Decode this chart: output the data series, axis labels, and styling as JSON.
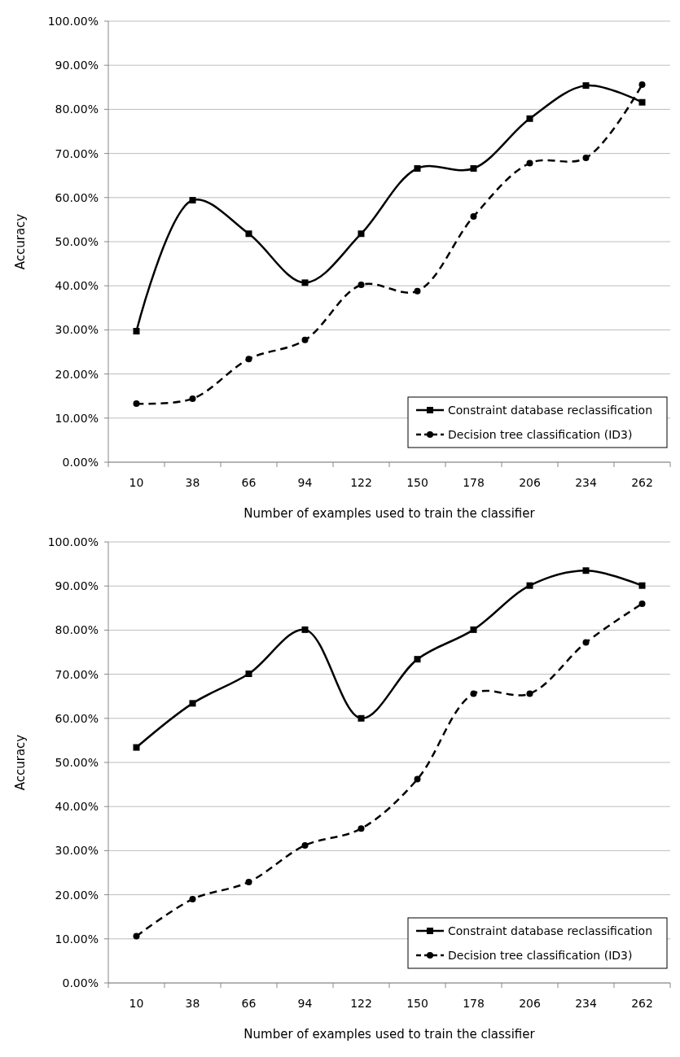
{
  "chart_data": [
    {
      "type": "line",
      "xlabel": "Number of examples used to train the classifier",
      "ylabel": "Accuracy",
      "categories": [
        "10",
        "38",
        "66",
        "94",
        "122",
        "150",
        "178",
        "206",
        "234",
        "262"
      ],
      "ylim": [
        0,
        100
      ],
      "yticks": [
        {
          "value": 0,
          "label": "0.00%"
        },
        {
          "value": 10,
          "label": "10.00%"
        },
        {
          "value": 20,
          "label": "20.00%"
        },
        {
          "value": 30,
          "label": "30.00%"
        },
        {
          "value": 40,
          "label": "40.00%"
        },
        {
          "value": 50,
          "label": "50.00%"
        },
        {
          "value": 60,
          "label": "60.00%"
        },
        {
          "value": 70,
          "label": "70.00%"
        },
        {
          "value": 80,
          "label": "80.00%"
        },
        {
          "value": 90,
          "label": "90.00%"
        },
        {
          "value": 100,
          "label": "100.00%"
        }
      ],
      "grid": "y",
      "legend": "bottom right",
      "series": [
        {
          "name": "Constraint database reclassification",
          "color": "#000000",
          "marker": "square",
          "line_style": "solid",
          "values": [
            29.7,
            59.4,
            51.8,
            40.7,
            51.8,
            66.6,
            66.6,
            77.9,
            85.4,
            81.6
          ]
        },
        {
          "name": "Decision tree classification (ID3)",
          "color": "#000000",
          "marker": "circle",
          "line_style": "dashed",
          "values": [
            13.3,
            14.4,
            23.4,
            27.7,
            40.2,
            38.8,
            55.7,
            67.8,
            69.0,
            85.6
          ]
        }
      ]
    },
    {
      "type": "line",
      "xlabel": "Number of examples used to train the classifier",
      "ylabel": "Accuracy",
      "categories": [
        "10",
        "38",
        "66",
        "94",
        "122",
        "150",
        "178",
        "206",
        "234",
        "262"
      ],
      "ylim": [
        0,
        100
      ],
      "yticks": [
        {
          "value": 0,
          "label": "0.00%"
        },
        {
          "value": 10,
          "label": "10.00%"
        },
        {
          "value": 20,
          "label": "20.00%"
        },
        {
          "value": 30,
          "label": "30.00%"
        },
        {
          "value": 40,
          "label": "40.00%"
        },
        {
          "value": 50,
          "label": "50.00%"
        },
        {
          "value": 60,
          "label": "60.00%"
        },
        {
          "value": 70,
          "label": "70.00%"
        },
        {
          "value": 80,
          "label": "80.00%"
        },
        {
          "value": 90,
          "label": "90.00%"
        },
        {
          "value": 100,
          "label": "100.00%"
        }
      ],
      "grid": "y",
      "legend": "bottom right",
      "series": [
        {
          "name": "Constraint database reclassification",
          "color": "#000000",
          "marker": "square",
          "line_style": "solid",
          "values": [
            53.4,
            63.4,
            70.1,
            80.1,
            60.0,
            73.4,
            80.1,
            90.1,
            93.5,
            90.1
          ]
        },
        {
          "name": "Decision tree classification (ID3)",
          "color": "#000000",
          "marker": "circle",
          "line_style": "dashed",
          "values": [
            10.6,
            19.0,
            22.9,
            31.2,
            35.0,
            46.2,
            65.6,
            65.6,
            77.2,
            86.0
          ]
        }
      ]
    }
  ]
}
